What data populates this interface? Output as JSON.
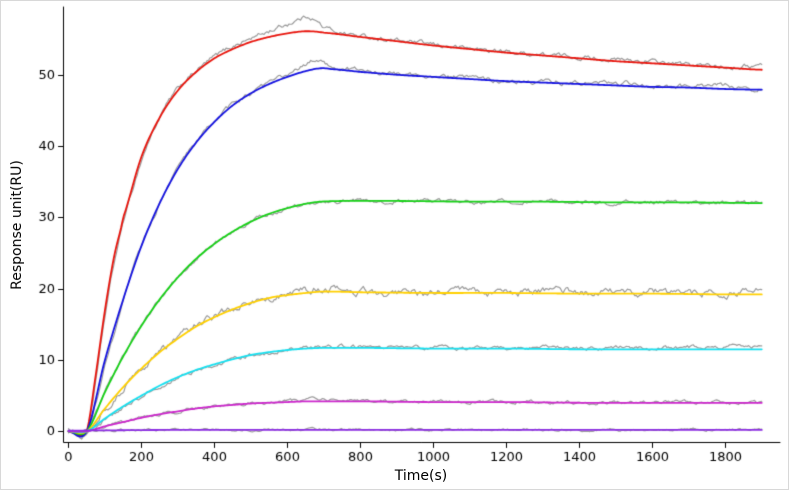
{
  "chart_data": {
    "type": "line",
    "title": "",
    "xlabel": "Time(s)",
    "ylabel": "Response unit(RU)",
    "xlim": [
      -15,
      1950
    ],
    "ylim": [
      -1.5,
      59.5
    ],
    "x_ticks": [
      0,
      200,
      400,
      600,
      800,
      1000,
      1200,
      1400,
      1600,
      1800
    ],
    "y_ticks": [
      0,
      10,
      20,
      30,
      40,
      50
    ],
    "grid": false,
    "legend": "none",
    "background": "#ffffff",
    "axis_color": "#000000",
    "data_trace_color": "#9c9c9c",
    "series": [
      {
        "name": "red",
        "color": "#e8150d",
        "noise": 0.35,
        "fit_points": [
          [
            0,
            0
          ],
          [
            50,
            0
          ],
          [
            75,
            8
          ],
          [
            100,
            17
          ],
          [
            125,
            24.5
          ],
          [
            150,
            30
          ],
          [
            200,
            38.5
          ],
          [
            250,
            44
          ],
          [
            300,
            47.8
          ],
          [
            350,
            50.4
          ],
          [
            400,
            52.3
          ],
          [
            450,
            53.6
          ],
          [
            500,
            54.6
          ],
          [
            550,
            55.3
          ],
          [
            600,
            55.8
          ],
          [
            650,
            56.1
          ],
          [
            700,
            55.9
          ],
          [
            800,
            55.3
          ],
          [
            900,
            54.7
          ],
          [
            1000,
            54.1
          ],
          [
            1100,
            53.6
          ],
          [
            1200,
            53.1
          ],
          [
            1300,
            52.7
          ],
          [
            1400,
            52.3
          ],
          [
            1500,
            51.9
          ],
          [
            1600,
            51.6
          ],
          [
            1700,
            51.3
          ],
          [
            1800,
            51.0
          ],
          [
            1900,
            50.7
          ]
        ],
        "data_points": [
          [
            0,
            0
          ],
          [
            50,
            0
          ],
          [
            75,
            7
          ],
          [
            100,
            16
          ],
          [
            125,
            23.5
          ],
          [
            150,
            29.5
          ],
          [
            200,
            38
          ],
          [
            250,
            44
          ],
          [
            300,
            48
          ],
          [
            350,
            50.5
          ],
          [
            400,
            52.5
          ],
          [
            450,
            54
          ],
          [
            500,
            55.1
          ],
          [
            550,
            56.1
          ],
          [
            600,
            57.1
          ],
          [
            640,
            57.9
          ],
          [
            660,
            58.2
          ],
          [
            680,
            57.5
          ],
          [
            700,
            56.6
          ],
          [
            750,
            55.9
          ],
          [
            800,
            55.4
          ],
          [
            900,
            54.8
          ],
          [
            1000,
            54.2
          ],
          [
            1100,
            53.7
          ],
          [
            1200,
            53.2
          ],
          [
            1300,
            52.8
          ],
          [
            1400,
            52.5
          ],
          [
            1500,
            52.1
          ],
          [
            1600,
            51.8
          ],
          [
            1700,
            51.4
          ],
          [
            1800,
            51.2
          ],
          [
            1900,
            51.3
          ]
        ]
      },
      {
        "name": "blue",
        "color": "#1412e0",
        "noise": 0.35,
        "fit_points": [
          [
            0,
            0
          ],
          [
            50,
            0
          ],
          [
            100,
            10
          ],
          [
            150,
            18.5
          ],
          [
            200,
            26
          ],
          [
            250,
            32
          ],
          [
            300,
            36.8
          ],
          [
            350,
            40.5
          ],
          [
            400,
            43.4
          ],
          [
            450,
            45.7
          ],
          [
            500,
            47.4
          ],
          [
            550,
            48.7
          ],
          [
            600,
            49.7
          ],
          [
            650,
            50.5
          ],
          [
            690,
            50.9
          ],
          [
            720,
            50.8
          ],
          [
            800,
            50.4
          ],
          [
            900,
            50.0
          ],
          [
            1000,
            49.7
          ],
          [
            1100,
            49.4
          ],
          [
            1200,
            49.1
          ],
          [
            1300,
            48.9
          ],
          [
            1400,
            48.7
          ],
          [
            1500,
            48.5
          ],
          [
            1600,
            48.3
          ],
          [
            1700,
            48.2
          ],
          [
            1800,
            48.0
          ],
          [
            1900,
            47.9
          ]
        ],
        "data_points": [
          [
            0,
            0
          ],
          [
            50,
            0
          ],
          [
            100,
            9
          ],
          [
            150,
            18
          ],
          [
            200,
            26
          ],
          [
            250,
            32
          ],
          [
            300,
            37
          ],
          [
            350,
            40.5
          ],
          [
            400,
            43.5
          ],
          [
            450,
            45.8
          ],
          [
            500,
            47.5
          ],
          [
            550,
            48.8
          ],
          [
            600,
            50.0
          ],
          [
            650,
            51.3
          ],
          [
            680,
            52.1
          ],
          [
            700,
            51.7
          ],
          [
            730,
            51.1
          ],
          [
            800,
            50.6
          ],
          [
            900,
            50.1
          ],
          [
            1000,
            49.8
          ],
          [
            1100,
            49.5
          ],
          [
            1200,
            49.2
          ],
          [
            1300,
            49.0
          ],
          [
            1400,
            48.8
          ],
          [
            1500,
            48.9
          ],
          [
            1600,
            48.4
          ],
          [
            1700,
            48.3
          ],
          [
            1800,
            48.5
          ],
          [
            1900,
            48.0
          ]
        ]
      },
      {
        "name": "green",
        "color": "#17d117",
        "noise": 0.3,
        "fit_points": [
          [
            0,
            0
          ],
          [
            50,
            0
          ],
          [
            100,
            5.5
          ],
          [
            150,
            10.5
          ],
          [
            200,
            14.8
          ],
          [
            250,
            18.5
          ],
          [
            300,
            21.6
          ],
          [
            350,
            24.2
          ],
          [
            400,
            26.3
          ],
          [
            450,
            28.0
          ],
          [
            500,
            29.4
          ],
          [
            550,
            30.5
          ],
          [
            600,
            31.3
          ],
          [
            650,
            31.9
          ],
          [
            690,
            32.2
          ],
          [
            750,
            32.3
          ],
          [
            900,
            32.3
          ],
          [
            1100,
            32.2
          ],
          [
            1300,
            32.2
          ],
          [
            1500,
            32.1
          ],
          [
            1700,
            32.1
          ],
          [
            1900,
            32.0
          ]
        ]
      },
      {
        "name": "yellow",
        "color": "#ffd000",
        "noise": 0.55,
        "fit_points": [
          [
            0,
            0
          ],
          [
            50,
            0
          ],
          [
            100,
            3.2
          ],
          [
            150,
            6.2
          ],
          [
            200,
            8.8
          ],
          [
            250,
            11.1
          ],
          [
            300,
            13.0
          ],
          [
            350,
            14.7
          ],
          [
            400,
            16.0
          ],
          [
            450,
            17.1
          ],
          [
            500,
            18.0
          ],
          [
            550,
            18.7
          ],
          [
            600,
            19.1
          ],
          [
            650,
            19.4
          ],
          [
            700,
            19.6
          ],
          [
            800,
            19.5
          ],
          [
            1000,
            19.4
          ],
          [
            1200,
            19.4
          ],
          [
            1400,
            19.3
          ],
          [
            1600,
            19.3
          ],
          [
            1800,
            19.2
          ],
          [
            1900,
            19.2
          ]
        ],
        "data_points": [
          [
            0,
            0
          ],
          [
            50,
            0
          ],
          [
            100,
            3.0
          ],
          [
            150,
            6.0
          ],
          [
            200,
            8.8
          ],
          [
            250,
            11.0
          ],
          [
            300,
            13.0
          ],
          [
            350,
            14.8
          ],
          [
            400,
            16.0
          ],
          [
            450,
            17.2
          ],
          [
            500,
            18.0
          ],
          [
            550,
            18.7
          ],
          [
            600,
            19.2
          ],
          [
            650,
            19.7
          ],
          [
            700,
            20.1
          ],
          [
            750,
            20.2
          ],
          [
            780,
            19.7
          ],
          [
            850,
            19.5
          ],
          [
            1000,
            19.4
          ],
          [
            1100,
            19.6
          ],
          [
            1200,
            19.3
          ],
          [
            1300,
            19.6
          ],
          [
            1400,
            19.5
          ],
          [
            1500,
            19.4
          ],
          [
            1600,
            19.6
          ],
          [
            1700,
            19.3
          ],
          [
            1800,
            19.4
          ],
          [
            1900,
            19.6
          ]
        ]
      },
      {
        "name": "cyan",
        "color": "#16e0f0",
        "noise": 0.3,
        "fit_points": [
          [
            0,
            0
          ],
          [
            50,
            0
          ],
          [
            100,
            1.8
          ],
          [
            150,
            3.5
          ],
          [
            200,
            5.0
          ],
          [
            250,
            6.4
          ],
          [
            300,
            7.6
          ],
          [
            350,
            8.6
          ],
          [
            400,
            9.4
          ],
          [
            450,
            10.1
          ],
          [
            500,
            10.7
          ],
          [
            550,
            11.1
          ],
          [
            600,
            11.4
          ],
          [
            650,
            11.6
          ],
          [
            700,
            11.7
          ],
          [
            800,
            11.7
          ],
          [
            1000,
            11.6
          ],
          [
            1200,
            11.6
          ],
          [
            1400,
            11.5
          ],
          [
            1600,
            11.5
          ],
          [
            1800,
            11.5
          ],
          [
            1900,
            11.5
          ]
        ],
        "data_points": [
          [
            0,
            0
          ],
          [
            50,
            0
          ],
          [
            100,
            1.6
          ],
          [
            150,
            3.3
          ],
          [
            200,
            4.8
          ],
          [
            250,
            6.2
          ],
          [
            300,
            7.5
          ],
          [
            350,
            8.5
          ],
          [
            400,
            9.3
          ],
          [
            450,
            10.0
          ],
          [
            500,
            10.6
          ],
          [
            550,
            11.0
          ],
          [
            600,
            11.4
          ],
          [
            650,
            11.7
          ],
          [
            700,
            11.9
          ],
          [
            750,
            12.0
          ],
          [
            800,
            11.9
          ],
          [
            900,
            11.8
          ],
          [
            1000,
            11.7
          ],
          [
            1200,
            11.7
          ],
          [
            1400,
            11.7
          ],
          [
            1600,
            11.7
          ],
          [
            1800,
            11.8
          ],
          [
            1900,
            11.9
          ]
        ]
      },
      {
        "name": "magenta",
        "color": "#cc26cc",
        "noise": 0.25,
        "fit_points": [
          [
            0,
            0
          ],
          [
            50,
            0
          ],
          [
            100,
            0.7
          ],
          [
            150,
            1.3
          ],
          [
            200,
            1.9
          ],
          [
            250,
            2.4
          ],
          [
            300,
            2.8
          ],
          [
            350,
            3.2
          ],
          [
            400,
            3.5
          ],
          [
            450,
            3.7
          ],
          [
            500,
            3.9
          ],
          [
            550,
            4.0
          ],
          [
            600,
            4.1
          ],
          [
            650,
            4.2
          ],
          [
            700,
            4.2
          ],
          [
            800,
            4.2
          ],
          [
            1000,
            4.1
          ],
          [
            1200,
            4.1
          ],
          [
            1400,
            4.0
          ],
          [
            1600,
            4.0
          ],
          [
            1800,
            4.0
          ],
          [
            1900,
            4.0
          ]
        ],
        "data_points": [
          [
            0,
            0
          ],
          [
            50,
            0
          ],
          [
            100,
            0.7
          ],
          [
            200,
            1.9
          ],
          [
            300,
            2.8
          ],
          [
            400,
            3.5
          ],
          [
            500,
            3.9
          ],
          [
            600,
            4.2
          ],
          [
            650,
            4.4
          ],
          [
            700,
            4.5
          ],
          [
            750,
            4.4
          ],
          [
            800,
            4.3
          ],
          [
            1000,
            4.2
          ],
          [
            1200,
            4.1
          ],
          [
            1400,
            4.0
          ],
          [
            1600,
            4.1
          ],
          [
            1800,
            4.0
          ],
          [
            1900,
            4.1
          ]
        ]
      },
      {
        "name": "violet",
        "color": "#8a2be2",
        "noise": 0.18,
        "fit_points": [
          [
            0,
            0.1
          ],
          [
            300,
            0.2
          ],
          [
            1900,
            0.2
          ]
        ]
      }
    ]
  }
}
